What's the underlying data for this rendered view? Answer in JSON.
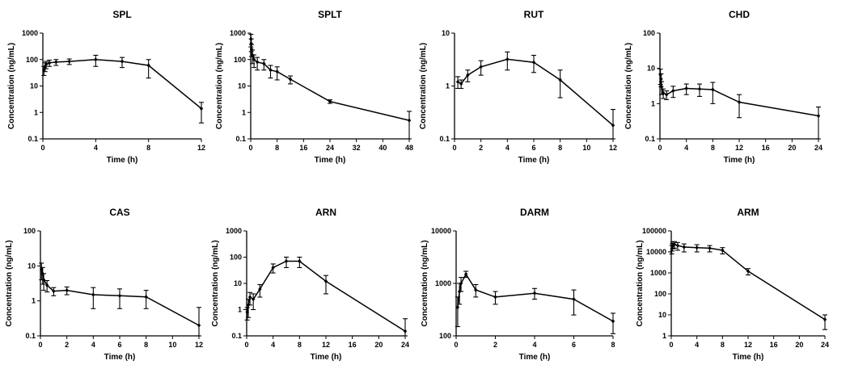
{
  "chart_data": [
    {
      "type": "line",
      "title": "SPL",
      "xlabel": "Time (h)",
      "ylabel": "Concentration (ng/mL)",
      "yscale": "log",
      "xlim": [
        0,
        12
      ],
      "ylim": [
        0.1,
        1000
      ],
      "xticks": [
        0,
        4,
        8,
        12
      ],
      "yticks": [
        0.1,
        1,
        10,
        100,
        1000
      ],
      "yticklabels": [
        "0.1",
        "1",
        "10",
        "100",
        "1000"
      ],
      "x": [
        0.08,
        0.17,
        0.25,
        0.5,
        1,
        2,
        4,
        6,
        8,
        12
      ],
      "y": [
        40,
        55,
        65,
        75,
        80,
        85,
        100,
        85,
        60,
        1.4
      ],
      "err": [
        15,
        20,
        20,
        20,
        20,
        20,
        45,
        35,
        40,
        1.0
      ]
    },
    {
      "type": "line",
      "title": "SPLT",
      "xlabel": "Time (h)",
      "ylabel": "Concentration (ng/mL)",
      "yscale": "log",
      "xlim": [
        0,
        48
      ],
      "ylim": [
        0.1,
        1000
      ],
      "xticks": [
        0,
        8,
        16,
        24,
        32,
        40,
        48
      ],
      "yticks": [
        0.1,
        1,
        10,
        100,
        1000
      ],
      "yticklabels": [
        "0.1",
        "1",
        "10",
        "100",
        "1000"
      ],
      "x": [
        0.08,
        0.17,
        0.25,
        0.5,
        1,
        2,
        4,
        6,
        8,
        12,
        24,
        48
      ],
      "y": [
        600,
        400,
        250,
        150,
        100,
        80,
        70,
        40,
        35,
        18,
        2.6,
        0.5
      ],
      "err": [
        300,
        200,
        120,
        80,
        50,
        40,
        30,
        20,
        18,
        6,
        0.4,
        0.6
      ]
    },
    {
      "type": "line",
      "title": "RUT",
      "xlabel": "Time (h)",
      "ylabel": "Concentration (ng/mL)",
      "yscale": "log",
      "xlim": [
        0,
        12
      ],
      "ylim": [
        0.1,
        10
      ],
      "xticks": [
        0,
        2,
        4,
        6,
        8,
        10,
        12
      ],
      "yticks": [
        0.1,
        1,
        10
      ],
      "yticklabels": [
        "0.1",
        "1",
        "10"
      ],
      "x": [
        0.25,
        0.5,
        1,
        2,
        4,
        6,
        8,
        12
      ],
      "y": [
        1.2,
        1.1,
        1.6,
        2.3,
        3.2,
        2.8,
        1.3,
        0.18
      ],
      "err": [
        0.3,
        0.2,
        0.4,
        0.7,
        1.2,
        1.0,
        0.7,
        0.18
      ]
    },
    {
      "type": "line",
      "title": "CHD",
      "xlabel": "Time (h)",
      "ylabel": "Concentration (ng/mL)",
      "yscale": "log",
      "xlim": [
        0,
        24
      ],
      "ylim": [
        0.1,
        100
      ],
      "xticks": [
        0,
        4,
        8,
        12,
        16,
        20,
        24
      ],
      "yticks": [
        0.1,
        1,
        10,
        100
      ],
      "yticklabels": [
        "0.1",
        "1",
        "10",
        "100"
      ],
      "x": [
        0.08,
        0.17,
        0.25,
        0.5,
        1,
        2,
        4,
        6,
        8,
        12,
        24
      ],
      "y": [
        6.5,
        5,
        3,
        2,
        1.8,
        2.3,
        2.7,
        2.6,
        2.5,
        1.1,
        0.45
      ],
      "err": [
        3,
        2,
        1.2,
        0.6,
        0.5,
        0.8,
        0.9,
        1.0,
        1.5,
        0.7,
        0.35
      ]
    },
    {
      "type": "line",
      "title": "CAS",
      "xlabel": "Time (h)",
      "ylabel": "Concentration (ng/mL)",
      "yscale": "log",
      "xlim": [
        0,
        12
      ],
      "ylim": [
        0.1,
        100
      ],
      "xticks": [
        0,
        2,
        4,
        6,
        8,
        10,
        12
      ],
      "yticks": [
        0.1,
        1,
        10,
        100
      ],
      "yticklabels": [
        "0.1",
        "1",
        "10",
        "100"
      ],
      "x": [
        0.08,
        0.17,
        0.25,
        0.5,
        1,
        2,
        4,
        6,
        8,
        12
      ],
      "y": [
        8,
        6,
        4,
        2.8,
        1.9,
        2.0,
        1.5,
        1.4,
        1.3,
        0.2
      ],
      "err": [
        4,
        3,
        2,
        1.0,
        0.5,
        0.5,
        0.9,
        0.8,
        0.7,
        0.45
      ]
    },
    {
      "type": "line",
      "title": "ARN",
      "xlabel": "Time (h)",
      "ylabel": "Concentration (ng/mL)",
      "yscale": "log",
      "xlim": [
        0,
        24
      ],
      "ylim": [
        0.1,
        1000
      ],
      "xticks": [
        0,
        4,
        8,
        12,
        16,
        20,
        24
      ],
      "yticks": [
        0.1,
        1,
        10,
        100,
        1000
      ],
      "yticklabels": [
        "0.1",
        "1",
        "10",
        "100",
        "1000"
      ],
      "x": [
        0.08,
        0.25,
        0.5,
        1,
        2,
        4,
        6,
        8,
        12,
        24
      ],
      "y": [
        0.8,
        1.5,
        3,
        2.5,
        6,
        40,
        70,
        70,
        12,
        0.15
      ],
      "err": [
        0.4,
        1.0,
        1.5,
        1.5,
        3,
        15,
        30,
        30,
        8,
        0.3
      ]
    },
    {
      "type": "line",
      "title": "DARM",
      "xlabel": "Time (h)",
      "ylabel": "Concentration (ng/mL)",
      "yscale": "log",
      "xlim": [
        0,
        8
      ],
      "ylim": [
        100,
        10000
      ],
      "xticks": [
        0,
        2,
        4,
        6,
        8
      ],
      "yticks": [
        100,
        1000,
        10000
      ],
      "yticklabels": [
        "100",
        "1000",
        "10000"
      ],
      "x": [
        0.08,
        0.17,
        0.25,
        0.5,
        1,
        2,
        4,
        6,
        8
      ],
      "y": [
        350,
        700,
        1000,
        1500,
        750,
        550,
        650,
        500,
        190
      ],
      "err": [
        200,
        300,
        300,
        200,
        200,
        150,
        150,
        250,
        80
      ]
    },
    {
      "type": "line",
      "title": "ARM",
      "xlabel": "Time (h)",
      "ylabel": "Concentration (ng/mL)",
      "yscale": "log",
      "xlim": [
        0,
        24
      ],
      "ylim": [
        1,
        100000
      ],
      "xticks": [
        0,
        4,
        8,
        12,
        16,
        20,
        24
      ],
      "yticks": [
        1,
        10,
        100,
        1000,
        10000,
        100000
      ],
      "yticklabels": [
        "1",
        "10",
        "100",
        "1000",
        "10000",
        "100000"
      ],
      "x": [
        0.08,
        0.17,
        0.25,
        0.5,
        1,
        2,
        4,
        6,
        8,
        12,
        24
      ],
      "y": [
        14000,
        18000,
        22000,
        23000,
        20000,
        17000,
        16000,
        15000,
        12000,
        1200,
        6
      ],
      "err": [
        6000,
        7000,
        8000,
        8000,
        8000,
        7000,
        6000,
        5000,
        4000,
        400,
        4
      ]
    }
  ]
}
